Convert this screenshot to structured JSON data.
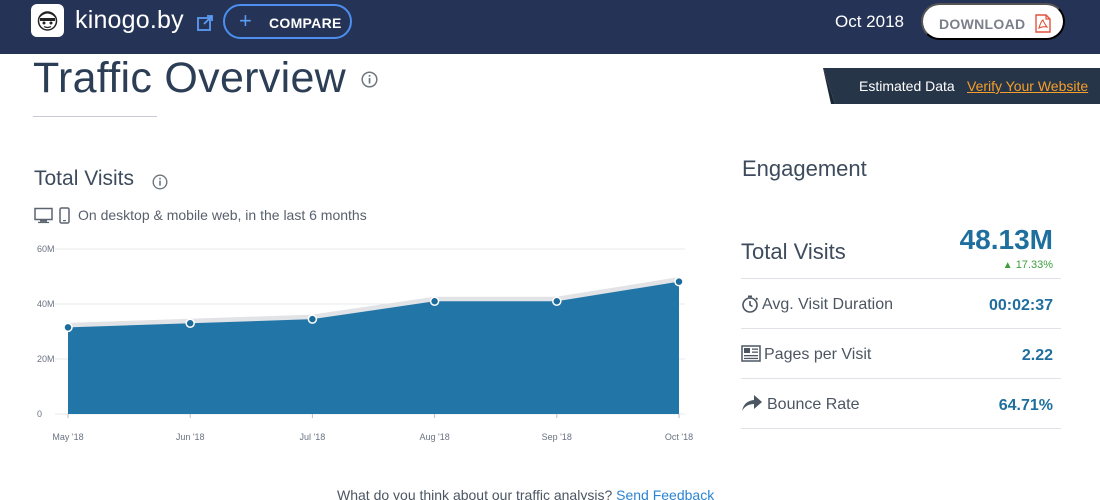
{
  "header": {
    "site_name": "kinogo.by",
    "compare_label": "COMPARE",
    "period": "Oct 2018",
    "download_label": "DOWNLOAD"
  },
  "page": {
    "title": "Traffic Overview"
  },
  "banner": {
    "estimated_label": "Estimated Data",
    "verify_label": "Verify Your Website"
  },
  "total_visits": {
    "title": "Total Visits",
    "subtitle": "On desktop & mobile web, in the last 6 months"
  },
  "chart_data": {
    "type": "area",
    "categories": [
      "May '18",
      "Jun '18",
      "Jul '18",
      "Aug '18",
      "Sep '18",
      "Oct '18"
    ],
    "values": [
      31.5,
      33,
      34.5,
      41,
      41,
      48.13
    ],
    "ylim": [
      0,
      60
    ],
    "yticks": [
      {
        "value": 0,
        "label": "0"
      },
      {
        "value": 20,
        "label": "20M"
      },
      {
        "value": 40,
        "label": "40M"
      },
      {
        "value": 60,
        "label": "60M"
      }
    ],
    "grid": true,
    "colors": {
      "fill": "#2275a7",
      "halo": "#e1e3e6",
      "point": "#1c6b9b"
    }
  },
  "engagement": {
    "title": "Engagement",
    "total_visits_label": "Total Visits",
    "total_visits_value": "48.13M",
    "total_visits_change": "17.33%",
    "rows": [
      {
        "label": "Avg. Visit Duration",
        "value": "00:02:37",
        "icon": "stopwatch-icon"
      },
      {
        "label": "Pages per Visit",
        "value": "2.22",
        "icon": "pages-icon"
      },
      {
        "label": "Bounce Rate",
        "value": "64.71%",
        "icon": "bounce-arrow-icon"
      }
    ]
  },
  "feedback": {
    "question": "What do you think about our traffic analysis?",
    "link_label": "Send Feedback"
  },
  "colors": {
    "header_bg": "#253456",
    "accent": "#1f6f9e",
    "compare_border": "#4c8ff0",
    "verify": "#f59e2a",
    "positive": "#3e9e3e"
  }
}
